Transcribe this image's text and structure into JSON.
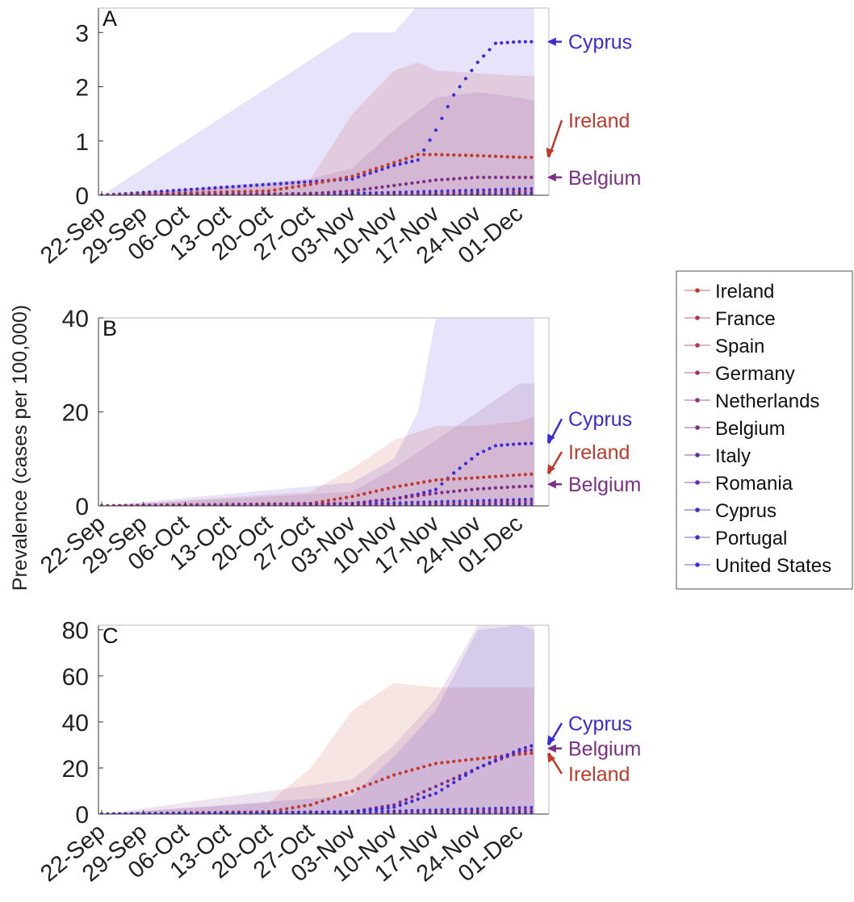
{
  "figure": {
    "ylabel": "Prevalence (cases per 100,000)",
    "date_ticks": [
      "22-Sep",
      "29-Sep",
      "06-Oct",
      "13-Oct",
      "20-Oct",
      "27-Oct",
      "03-Nov",
      "10-Nov",
      "17-Nov",
      "24-Nov",
      "01-Dec"
    ]
  },
  "legend": [
    {
      "name": "Ireland",
      "color": "#c0392b"
    },
    {
      "name": "France",
      "color": "#b83145"
    },
    {
      "name": "Spain",
      "color": "#b0385a"
    },
    {
      "name": "Germany",
      "color": "#a33463"
    },
    {
      "name": "Netherlands",
      "color": "#94306f"
    },
    {
      "name": "Belgium",
      "color": "#7d2e86"
    },
    {
      "name": "Italy",
      "color": "#6a2c9a"
    },
    {
      "name": "Romania",
      "color": "#5a2bb0"
    },
    {
      "name": "Cyprus",
      "color": "#3b2ad8"
    },
    {
      "name": "Portugal",
      "color": "#4a2bc4"
    },
    {
      "name": "United States",
      "color": "#3a2fd4"
    }
  ],
  "chart_data": [
    {
      "type": "line",
      "panel_label": "A",
      "ylim": [
        0,
        3.45
      ],
      "yticks": [
        0,
        1,
        2,
        3
      ],
      "x_dates": [
        "22-Sep",
        "01-Dec"
      ],
      "series": [
        {
          "name": "Cyprus",
          "color": "#3b2ad8",
          "x": [
            0,
            42,
            49,
            53,
            56,
            59,
            63,
            66,
            70,
            72.5
          ],
          "values": [
            0,
            0.3,
            0.55,
            0.65,
            1.2,
            1.85,
            2.45,
            2.8,
            2.83,
            2.83
          ],
          "band_upper": [
            0,
            3.0,
            3.0,
            3.5,
            3.5,
            3.5,
            3.5,
            3.5,
            3.5,
            3.5
          ],
          "band_lower": [
            0,
            0,
            0,
            0,
            0,
            0,
            0,
            0,
            0,
            0
          ]
        },
        {
          "name": "Ireland",
          "color": "#c0392b",
          "x": [
            0,
            28,
            35,
            42,
            49,
            53,
            56,
            63,
            70,
            72.5
          ],
          "values": [
            0,
            0.08,
            0.2,
            0.35,
            0.6,
            0.75,
            0.75,
            0.73,
            0.7,
            0.7
          ],
          "band_upper": [
            0,
            0.2,
            0.3,
            1.5,
            2.3,
            2.45,
            2.3,
            2.25,
            2.2,
            2.2
          ],
          "band_lower": [
            0,
            0,
            0,
            0,
            0,
            0,
            0,
            0,
            0,
            0
          ]
        },
        {
          "name": "Belgium",
          "color": "#7d2e86",
          "x": [
            0,
            35,
            42,
            49,
            56,
            63,
            70,
            72.5
          ],
          "values": [
            0,
            0.03,
            0.08,
            0.18,
            0.28,
            0.33,
            0.33,
            0.33
          ],
          "band_upper": [
            0,
            0.3,
            0.5,
            1.2,
            1.8,
            1.9,
            1.8,
            1.75
          ],
          "band_lower": [
            0,
            0,
            0,
            0,
            0,
            0,
            0,
            0
          ]
        }
      ],
      "annotations": [
        {
          "text": "Cyprus",
          "series": "Cyprus",
          "color": "#3b2ad8",
          "value": 2.83
        },
        {
          "text": "Ireland",
          "series": "Ireland",
          "color": "#c0392b",
          "value": 0.7,
          "label_value": 1.38
        },
        {
          "text": "Belgium",
          "series": "Belgium",
          "color": "#7d2e86",
          "value": 0.33
        }
      ]
    },
    {
      "type": "line",
      "panel_label": "B",
      "ylim": [
        0,
        40
      ],
      "yticks": [
        0,
        20,
        40
      ],
      "x_dates": [
        "22-Sep",
        "01-Dec"
      ],
      "series": [
        {
          "name": "Cyprus",
          "color": "#3b2ad8",
          "x": [
            0,
            42,
            49,
            53,
            56,
            59,
            63,
            66,
            70,
            72.5
          ],
          "values": [
            0,
            0.5,
            1.5,
            2.5,
            3.5,
            7,
            11,
            12.8,
            13.2,
            13.3
          ],
          "band_upper": [
            0,
            5,
            10,
            20,
            40,
            40,
            40,
            40,
            40,
            40
          ],
          "band_lower": [
            0,
            0,
            0,
            0,
            0,
            0,
            0,
            0,
            0,
            0
          ]
        },
        {
          "name": "Ireland",
          "color": "#c0392b",
          "x": [
            0,
            35,
            42,
            49,
            56,
            63,
            70,
            72.5
          ],
          "values": [
            0,
            0.5,
            2,
            4,
            5.5,
            6,
            6.6,
            6.8
          ],
          "band_upper": [
            0,
            3,
            8,
            14,
            17,
            17,
            18,
            19
          ],
          "band_lower": [
            0,
            0,
            0,
            0,
            0,
            0,
            0,
            0
          ]
        },
        {
          "name": "Belgium",
          "color": "#7d2e86",
          "x": [
            0,
            42,
            49,
            56,
            63,
            70,
            72.5
          ],
          "values": [
            0,
            0.5,
            1.5,
            2.7,
            3.6,
            4.1,
            4.2
          ],
          "band_upper": [
            0,
            3,
            8,
            14,
            20,
            26,
            26
          ],
          "band_lower": [
            0,
            0,
            0,
            0,
            0,
            0,
            0
          ]
        }
      ],
      "annotations": [
        {
          "text": "Cyprus",
          "series": "Cyprus",
          "color": "#3b2ad8",
          "value": 13.3,
          "label_value": 18.5
        },
        {
          "text": "Ireland",
          "series": "Ireland",
          "color": "#c0392b",
          "value": 6.8,
          "label_value": 11.5
        },
        {
          "text": "Belgium",
          "series": "Belgium",
          "color": "#7d2e86",
          "value": 4.6
        }
      ]
    },
    {
      "type": "line",
      "panel_label": "C",
      "ylim": [
        0,
        82
      ],
      "yticks": [
        0,
        20,
        40,
        60,
        80
      ],
      "x_dates": [
        "22-Sep",
        "01-Dec"
      ],
      "series": [
        {
          "name": "Ireland",
          "color": "#c0392b",
          "x": [
            0,
            28,
            35,
            42,
            49,
            56,
            63,
            70,
            72.5
          ],
          "values": [
            0,
            1,
            4,
            10,
            17,
            22,
            24,
            26,
            26.5
          ],
          "band_upper": [
            0,
            5,
            20,
            45,
            57,
            55,
            55,
            55,
            55
          ],
          "band_lower": [
            0,
            0,
            0,
            0,
            0,
            0,
            0,
            0,
            0
          ]
        },
        {
          "name": "Belgium",
          "color": "#7d2e86",
          "x": [
            0,
            42,
            49,
            56,
            63,
            70,
            72.5
          ],
          "values": [
            0,
            1,
            4,
            12,
            20,
            27,
            28
          ],
          "band_upper": [
            0,
            15,
            30,
            50,
            82,
            82,
            82
          ],
          "band_lower": [
            0,
            0,
            0,
            0,
            0,
            0,
            0
          ]
        },
        {
          "name": "Cyprus",
          "color": "#3b2ad8",
          "x": [
            0,
            42,
            49,
            56,
            63,
            70,
            72.5
          ],
          "values": [
            0,
            0.8,
            3,
            9,
            20,
            28,
            30
          ],
          "band_upper": [
            0,
            8,
            25,
            45,
            80,
            82,
            80
          ],
          "band_lower": [
            0,
            0,
            0,
            0,
            0,
            0,
            0
          ]
        }
      ],
      "annotations": [
        {
          "text": "Cyprus",
          "series": "Cyprus",
          "color": "#3b2ad8",
          "value": 30,
          "label_value": 39.5
        },
        {
          "text": "Belgium",
          "series": "Belgium",
          "color": "#7d2e86",
          "value": 28.5
        },
        {
          "text": "Ireland",
          "series": "Ireland",
          "color": "#c0392b",
          "value": 26.5,
          "label_value": 17.5
        }
      ]
    }
  ]
}
